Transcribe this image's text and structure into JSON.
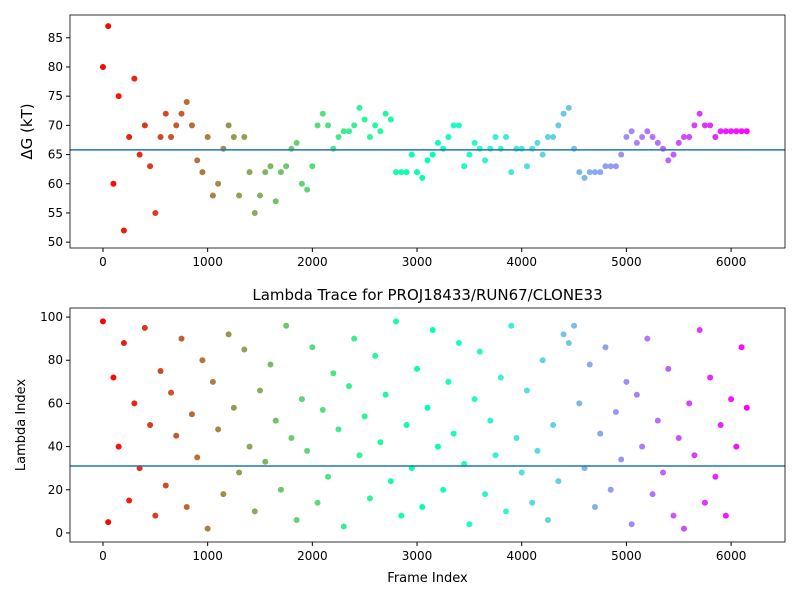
{
  "chart_data": [
    {
      "type": "scatter",
      "ylabel": "ΔG (kT)",
      "colormap": "rainbow_r",
      "xlim": [
        -315,
        6515
      ],
      "ylim": [
        49,
        88.9
      ],
      "xticks": [
        0,
        1000,
        2000,
        3000,
        4000,
        5000,
        6000
      ],
      "yticks": [
        50,
        55,
        60,
        65,
        70,
        75,
        80,
        85
      ],
      "reference_line": {
        "value": 65.8,
        "color": "#1f77b4"
      },
      "x": [
        0,
        50,
        100,
        150,
        200,
        250,
        300,
        350,
        400,
        450,
        500,
        550,
        600,
        650,
        700,
        750,
        800,
        850,
        900,
        950,
        1000,
        1050,
        1100,
        1150,
        1200,
        1250,
        1300,
        1350,
        1400,
        1450,
        1500,
        1550,
        1600,
        1650,
        1700,
        1750,
        1800,
        1850,
        1900,
        1950,
        2000,
        2050,
        2100,
        2150,
        2200,
        2250,
        2300,
        2350,
        2400,
        2450,
        2500,
        2550,
        2600,
        2650,
        2700,
        2750,
        2800,
        2850,
        2900,
        2950,
        3000,
        3050,
        3100,
        3150,
        3200,
        3250,
        3300,
        3350,
        3400,
        3450,
        3500,
        3550,
        3600,
        3650,
        3700,
        3750,
        3800,
        3850,
        3900,
        3950,
        4000,
        4050,
        4100,
        4150,
        4200,
        4250,
        4300,
        4350,
        4400,
        4450,
        4500,
        4550,
        4600,
        4650,
        4700,
        4750,
        4800,
        4850,
        4900,
        4950,
        5000,
        5050,
        5100,
        5150,
        5200,
        5250,
        5300,
        5350,
        5400,
        5450,
        5500,
        5550,
        5600,
        5650,
        5700,
        5750,
        5800,
        5850,
        5900,
        5950,
        6000,
        6050,
        6100,
        6150
      ],
      "values": [
        80,
        87,
        60,
        75,
        52,
        68,
        78,
        65,
        70,
        63,
        55,
        68,
        72,
        68,
        70,
        72,
        74,
        70,
        64,
        62,
        68,
        58,
        60,
        66,
        70,
        68,
        58,
        68,
        62,
        55,
        58,
        62,
        63,
        57,
        62,
        63,
        66,
        67,
        60,
        59,
        63,
        70,
        72,
        70,
        66,
        68,
        69,
        69,
        70,
        73,
        71,
        68,
        70,
        69,
        72,
        71,
        62,
        62,
        62,
        65,
        62,
        61,
        64,
        65,
        67,
        66,
        68,
        70,
        70,
        63,
        65,
        67,
        66,
        64,
        66,
        68,
        66,
        68,
        62,
        66,
        66,
        63,
        66,
        67,
        65,
        68,
        68,
        70,
        72,
        73,
        66,
        62,
        61,
        62,
        62,
        62,
        63,
        63,
        63,
        65,
        68,
        69,
        67,
        68,
        69,
        68,
        67,
        66,
        64,
        65,
        67,
        68,
        68,
        70,
        72,
        70,
        70,
        68,
        69,
        69,
        69,
        69,
        69,
        69
      ]
    },
    {
      "type": "scatter",
      "title": "Lambda Trace for PROJ18433/RUN67/CLONE33",
      "xlabel": "Frame Index",
      "ylabel": "Lambda Index",
      "colormap": "rainbow_r",
      "xlim": [
        -315,
        6515
      ],
      "ylim": [
        -4.2,
        104.2
      ],
      "xticks": [
        0,
        1000,
        2000,
        3000,
        4000,
        5000,
        6000
      ],
      "yticks": [
        0,
        20,
        40,
        60,
        80,
        100
      ],
      "reference_line": {
        "value": 31,
        "color": "#1f77b4"
      },
      "x": [
        0,
        50,
        100,
        150,
        200,
        250,
        300,
        350,
        400,
        450,
        500,
        550,
        600,
        650,
        700,
        750,
        800,
        850,
        900,
        950,
        1000,
        1050,
        1100,
        1150,
        1200,
        1250,
        1300,
        1350,
        1400,
        1450,
        1500,
        1550,
        1600,
        1650,
        1700,
        1750,
        1800,
        1850,
        1900,
        1950,
        2000,
        2050,
        2100,
        2150,
        2200,
        2250,
        2300,
        2350,
        2400,
        2450,
        2500,
        2550,
        2600,
        2650,
        2700,
        2750,
        2800,
        2850,
        2900,
        2950,
        3000,
        3050,
        3100,
        3150,
        3200,
        3250,
        3300,
        3350,
        3400,
        3450,
        3500,
        3550,
        3600,
        3650,
        3700,
        3750,
        3800,
        3850,
        3900,
        3950,
        4000,
        4050,
        4100,
        4150,
        4200,
        4250,
        4300,
        4350,
        4400,
        4450,
        4500,
        4550,
        4600,
        4650,
        4700,
        4750,
        4800,
        4850,
        4900,
        4950,
        5000,
        5050,
        5100,
        5150,
        5200,
        5250,
        5300,
        5350,
        5400,
        5450,
        5500,
        5550,
        5600,
        5650,
        5700,
        5750,
        5800,
        5850,
        5900,
        5950,
        6000,
        6050,
        6100,
        6150
      ],
      "values": [
        98,
        5,
        72,
        40,
        88,
        15,
        60,
        30,
        95,
        50,
        8,
        75,
        22,
        65,
        45,
        90,
        12,
        55,
        35,
        80,
        2,
        70,
        48,
        18,
        92,
        58,
        28,
        85,
        40,
        10,
        66,
        33,
        78,
        52,
        20,
        96,
        44,
        6,
        62,
        38,
        86,
        14,
        57,
        26,
        74,
        48,
        3,
        68,
        90,
        36,
        54,
        16,
        82,
        42,
        64,
        24,
        98,
        8,
        50,
        30,
        76,
        12,
        58,
        94,
        40,
        20,
        70,
        46,
        88,
        32,
        4,
        62,
        84,
        18,
        52,
        36,
        72,
        10,
        96,
        44,
        28,
        66,
        14,
        38,
        80,
        6,
        50,
        24,
        92,
        88,
        96,
        60,
        30,
        78,
        12,
        46,
        86,
        20,
        56,
        34,
        70,
        4,
        64,
        40,
        90,
        18,
        52,
        28,
        76,
        8,
        44,
        2,
        60,
        36,
        94,
        14,
        72,
        26,
        50,
        8,
        62,
        40,
        86,
        58
      ]
    }
  ]
}
